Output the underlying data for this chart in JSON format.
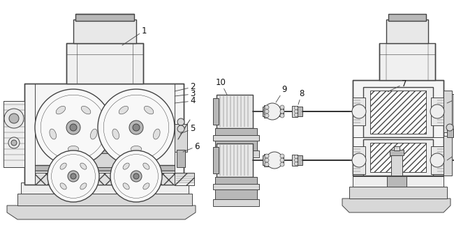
{
  "bg_color": "#ffffff",
  "line_color": "#444444",
  "label_color": "#111111",
  "label_fontsize": 8.5,
  "fig_width": 6.5,
  "fig_height": 3.23,
  "dpi": 100,
  "gray_light": "#d8d8d8",
  "gray_mid": "#b8b8b8",
  "gray_dark": "#888888",
  "hatch_color": "#666666"
}
